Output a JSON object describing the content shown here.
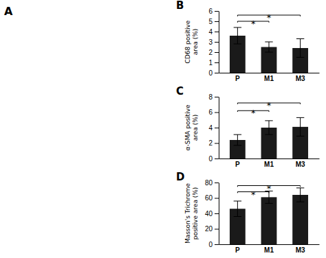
{
  "chart_data": [
    {
      "type": "panel",
      "title": "A"
    },
    {
      "type": "bar",
      "title": "B",
      "categories": [
        "P",
        "M1",
        "M3"
      ],
      "values": [
        3.6,
        2.5,
        2.4
      ],
      "errors": [
        0.8,
        0.5,
        0.9
      ],
      "color": "#1a1a1a",
      "ylabel": "CD68 positive\narea (%)",
      "ylim": [
        0,
        6
      ],
      "yticks": [
        0,
        1,
        2,
        3,
        4,
        5,
        6
      ],
      "annotations": [
        {
          "x1": "P",
          "x2": "M1",
          "y": 5.0,
          "label": "*"
        },
        {
          "x1": "P",
          "x2": "M3",
          "y": 5.6,
          "label": "*"
        }
      ]
    },
    {
      "type": "bar",
      "title": "C",
      "categories": [
        "P",
        "M1",
        "M3"
      ],
      "values": [
        2.4,
        4.0,
        4.1
      ],
      "errors": [
        0.7,
        0.9,
        1.2
      ],
      "color": "#1a1a1a",
      "ylabel": "α-SMA positive\narea (%)",
      "ylim": [
        0,
        8
      ],
      "yticks": [
        0,
        2,
        4,
        6,
        8
      ],
      "annotations": [
        {
          "x1": "P",
          "x2": "M1",
          "y": 6.2,
          "label": "*"
        },
        {
          "x1": "P",
          "x2": "M3",
          "y": 7.2,
          "label": "*"
        }
      ]
    },
    {
      "type": "bar",
      "title": "D",
      "categories": [
        "P",
        "M1",
        "M3"
      ],
      "values": [
        46,
        61,
        64
      ],
      "errors": [
        10,
        8,
        9
      ],
      "color": "#1a1a1a",
      "ylabel": "Masson's Trichrome\npositive area (%)",
      "ylim": [
        0,
        80
      ],
      "yticks": [
        0,
        20,
        40,
        60,
        80
      ],
      "annotations": [
        {
          "x1": "P",
          "x2": "M1",
          "y": 68,
          "label": "*"
        },
        {
          "x1": "P",
          "x2": "M3",
          "y": 76,
          "label": "*"
        }
      ]
    }
  ]
}
